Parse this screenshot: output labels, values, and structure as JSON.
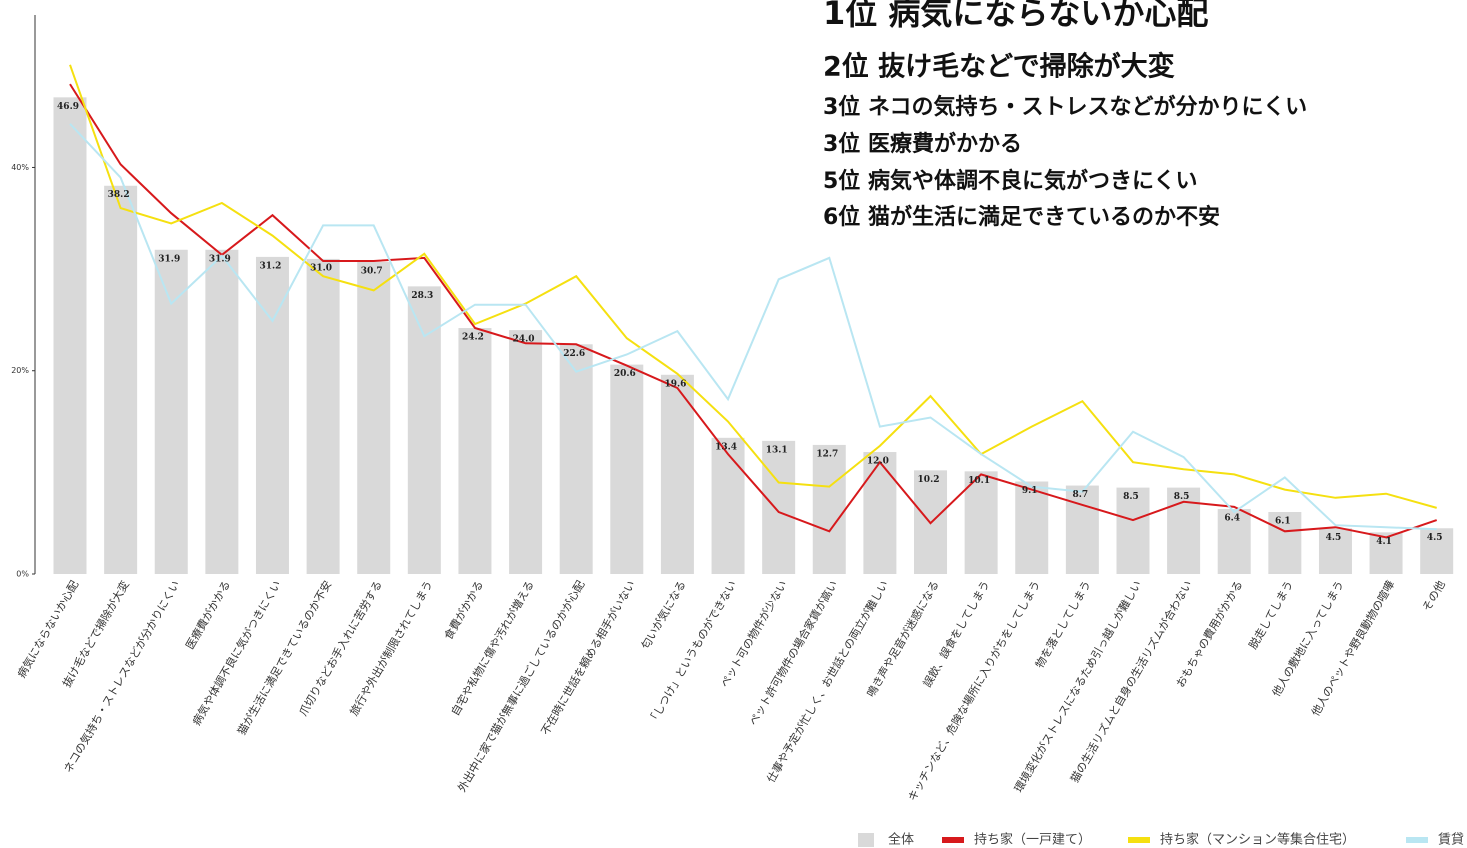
{
  "chart_data": {
    "type": "combo",
    "annotations": [
      "1位 病気にならないか心配",
      "2位 抜け毛などで掃除が大変",
      "3位 ネコの気持ち・ストレスなどが分かりにくい",
      "3位 医療費がかかる",
      "5位 病気や体調不良に気がつきにくい",
      "6位 猫が生活に満足できているのか不安"
    ],
    "categories": [
      "病気にならないか心配",
      "抜け毛などで掃除が大変",
      "ネコの気持ち・ストレスなどが分かりにくい",
      "医療費がかかる",
      "病気や体調不良に気がつきにくい",
      "猫が生活に満足できているのか不安",
      "爪切りなどお手入れに苦労する",
      "旅行や外出が制限されてしまう",
      "食費がかかる",
      "自宅や私物に傷や汚れが増える",
      "外出中に家で猫が無事に過ごしているのかが心配",
      "不在時に世話を頼める相手がいない",
      "匂いが気になる",
      "「しつけ」というものができない",
      "ペット可の物件が少ない",
      "ペット許可物件の場合家賃が高い",
      "仕事や予定が忙しく、お世話との両立が難しい",
      "鳴き声や足音が迷惑になる",
      "誤飲、誤食をしてしまう",
      "キッチンなど、危険な場所に入りがちをしてしまう",
      "物を落としてしまう",
      "環境変化がストレスになるため引っ越しが難しい",
      "猫の生活リズムと自身の生活リズムが合わない",
      "おもちゃの費用がかかる",
      "脱走してしまう",
      "他人の敷地に入ってしまう",
      "他人のペットや野良動物の喧嘩",
      "その他"
    ],
    "series": [
      {
        "name": "全体",
        "type": "bar",
        "color": "#d9d9d9",
        "values": [
          46.9,
          38.2,
          31.9,
          31.9,
          31.2,
          31.0,
          30.7,
          28.3,
          24.2,
          24.0,
          22.6,
          20.6,
          19.6,
          13.4,
          13.1,
          12.7,
          12.0,
          10.2,
          10.1,
          9.1,
          8.7,
          8.5,
          8.5,
          6.4,
          6.1,
          4.5,
          4.1,
          4.5
        ],
        "value_labels": [
          "46.9",
          "38.2",
          "31.9",
          "31.9",
          "31.2",
          "31.0",
          "30.7",
          "28.3",
          "24.2",
          "24.0",
          "22.6",
          "20.6",
          "19.6",
          "13.4",
          "13.1",
          "12.7",
          "12.0",
          "10.2",
          "10.1",
          "9.1",
          "8.7",
          "8.5",
          "8.5",
          "6.4",
          "6.1",
          "4.5",
          "4.1",
          "4.5"
        ]
      },
      {
        "name": "持ち家（一戸建て）",
        "type": "line",
        "color": "#d7191c",
        "values": [
          48.2,
          40.3,
          35.5,
          31.4,
          35.3,
          30.8,
          30.8,
          31.1,
          24.2,
          22.7,
          22.6,
          20.5,
          18.3,
          11.8,
          6.1,
          4.2,
          11.0,
          5.0,
          9.8,
          8.3,
          6.8,
          5.3,
          7.1,
          6.6,
          4.2,
          4.6,
          3.6,
          5.3
        ]
      },
      {
        "name": "持ち家（マンション等集合住宅）",
        "type": "line",
        "color": "#f5e010",
        "values": [
          50.1,
          36.0,
          34.5,
          36.5,
          33.3,
          29.3,
          27.9,
          31.5,
          24.6,
          26.6,
          29.3,
          23.2,
          19.7,
          15.0,
          9.0,
          8.6,
          12.6,
          17.5,
          11.8,
          14.5,
          17.0,
          11.0,
          10.3,
          9.8,
          8.3,
          7.5,
          7.9,
          6.5
        ]
      },
      {
        "name": "賃貸",
        "type": "line",
        "color": "#b9e6f2",
        "values": [
          44.3,
          39.0,
          26.6,
          31.3,
          24.9,
          34.3,
          34.3,
          23.4,
          26.5,
          26.5,
          19.9,
          21.6,
          23.9,
          17.2,
          29.0,
          31.1,
          14.5,
          15.4,
          11.8,
          8.6,
          8.1,
          14.0,
          11.5,
          6.1,
          9.5,
          4.8,
          4.6,
          4.4
        ]
      }
    ],
    "ylim": [
      0,
      55
    ],
    "yticks": [
      {
        "value": 0,
        "label": "0%"
      },
      {
        "value": 20,
        "label": "20%"
      },
      {
        "value": 40,
        "label": "40%"
      }
    ],
    "grid": false
  }
}
